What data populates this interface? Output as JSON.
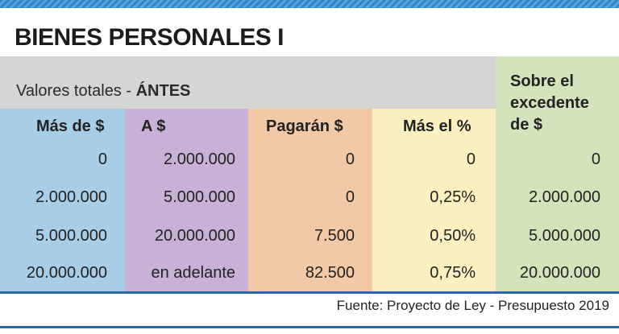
{
  "header": {
    "title": "BIENES PERSONALES I"
  },
  "table": {
    "group_label": "Valores totales - ",
    "group_emphasis": "ÁNTES",
    "columns": [
      "Más de $",
      "A $",
      "Pagarán $",
      "Más el %",
      "Sobre el excedente de $"
    ],
    "rows": [
      [
        "0",
        "2.000.000",
        "0",
        "0",
        "0"
      ],
      [
        "2.000.000",
        "5.000.000",
        "0",
        "0,25%",
        "2.000.000"
      ],
      [
        "5.000.000",
        "20.000.000",
        "7.500",
        "0,50%",
        "5.000.000"
      ],
      [
        "20.000.000",
        "en adelante",
        "82.500",
        "0,75%",
        "20.000.000"
      ]
    ]
  },
  "footer": {
    "source": "Fuente: Proyecto de Ley - Presupuesto 2019"
  }
}
